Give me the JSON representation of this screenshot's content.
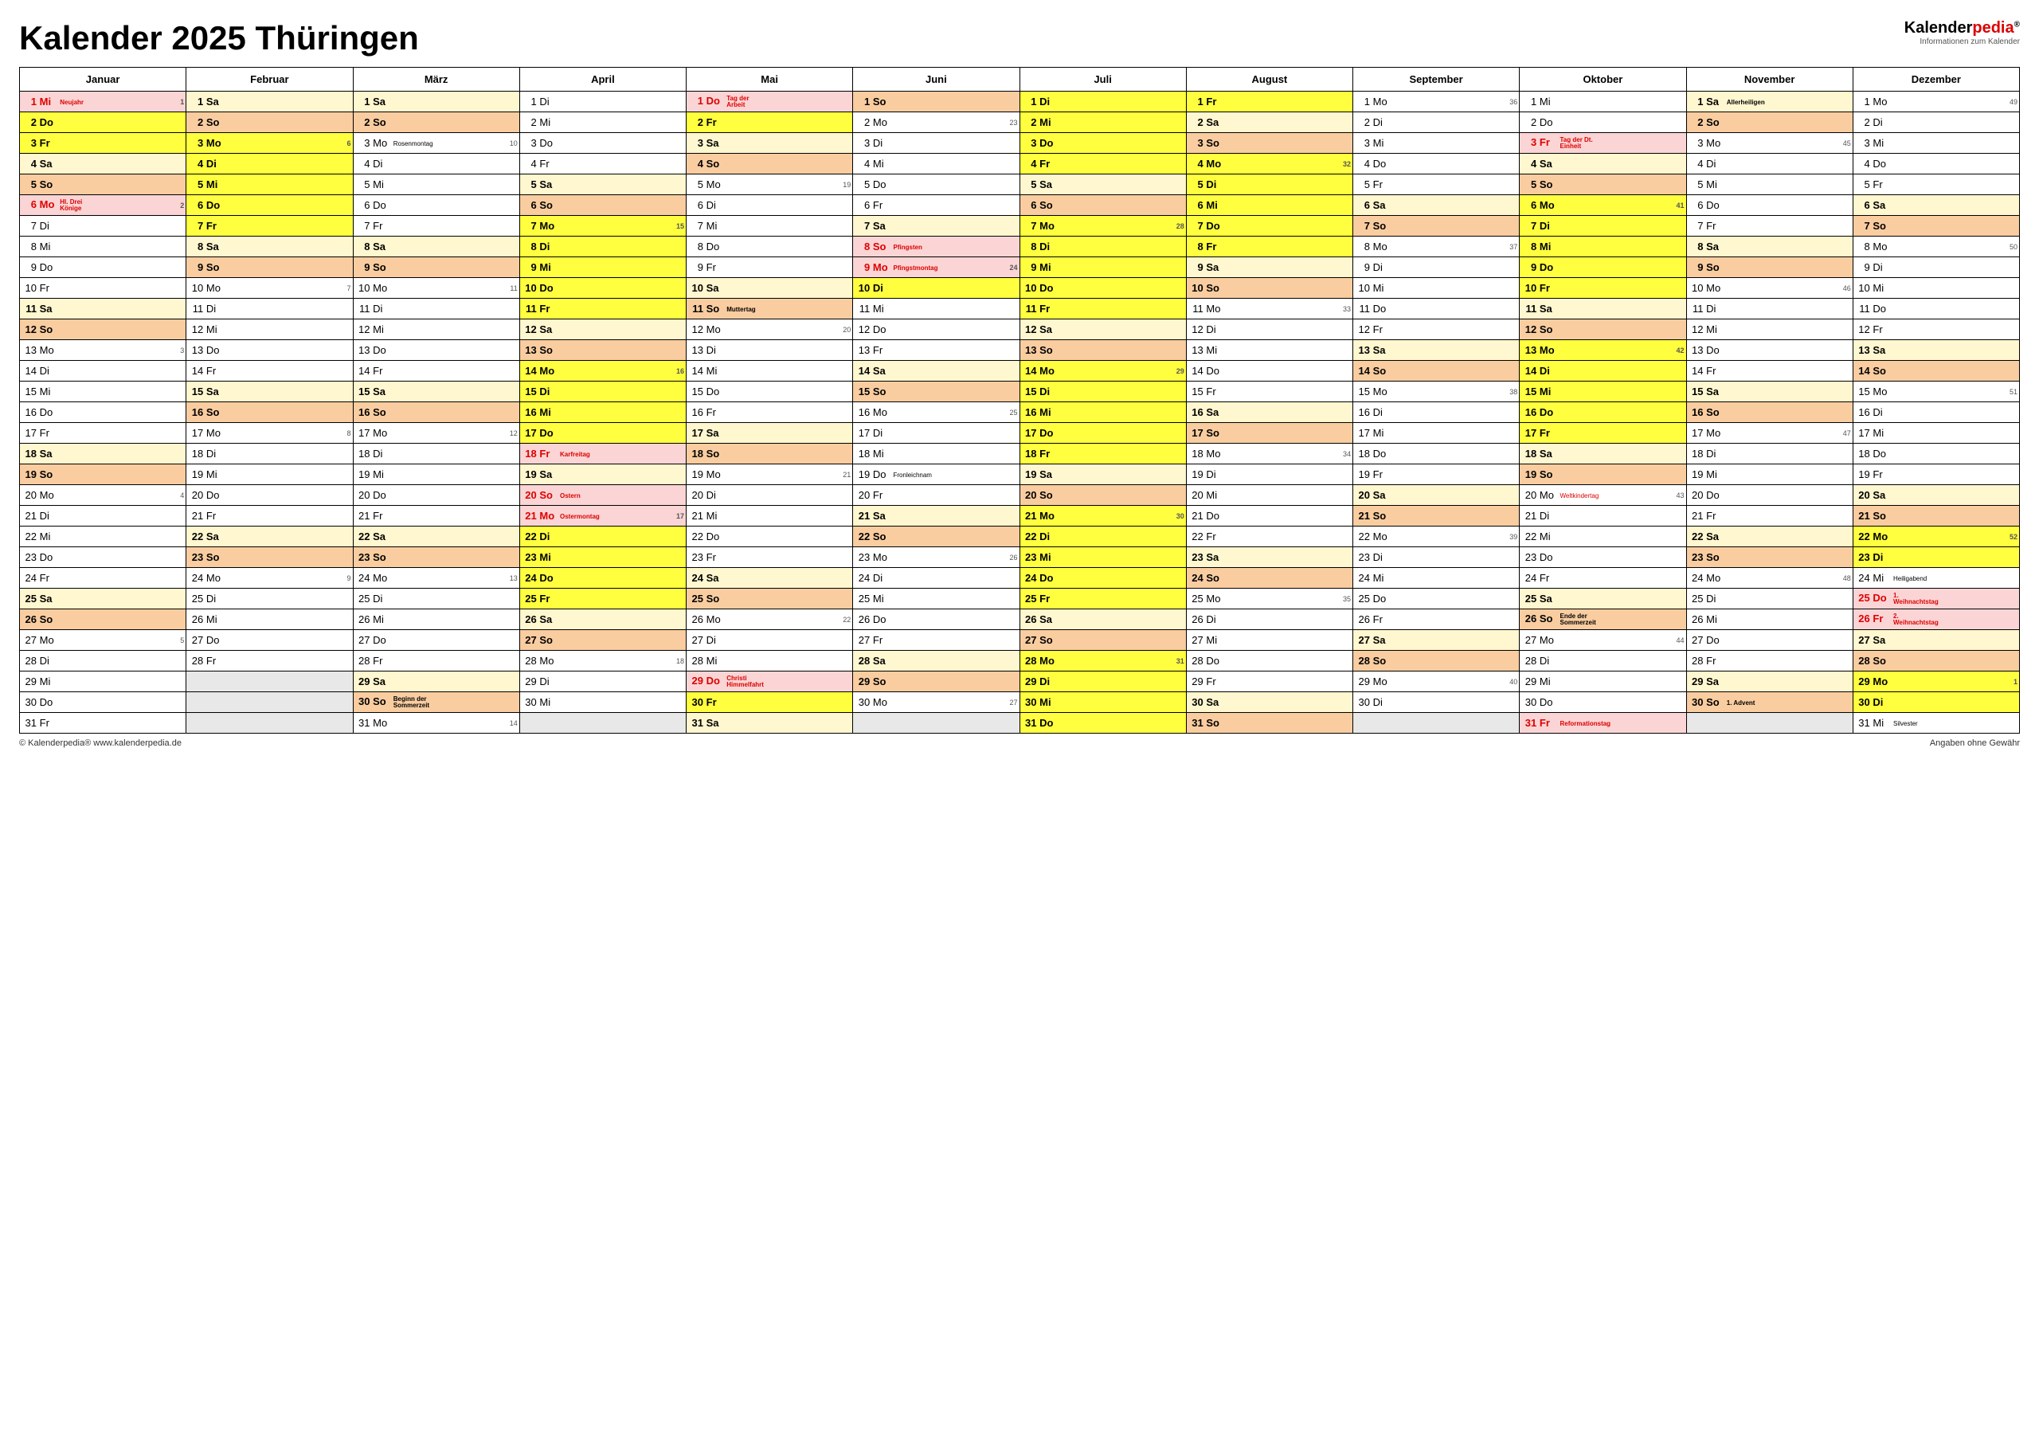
{
  "title": "Kalender 2025 Thüringen",
  "brand": {
    "name1": "Kalender",
    "name2": "pedia",
    "tag": "Informationen zum Kalender"
  },
  "footer": {
    "left": "© Kalenderpedia®   www.kalenderpedia.de",
    "right": "Angaben ohne Gewähr"
  },
  "colors": {
    "yellow": "#ffff3f",
    "cream": "#fff7cf",
    "peach": "#f9cda0",
    "pink": "#fbd5d5",
    "grey": "#e8e8e8"
  },
  "months": [
    "Januar",
    "Februar",
    "März",
    "April",
    "Mai",
    "Juni",
    "Juli",
    "August",
    "September",
    "Oktober",
    "November",
    "Dezember"
  ],
  "dow": [
    "Mo",
    "Di",
    "Mi",
    "Do",
    "Fr",
    "Sa",
    "So"
  ],
  "startDow": [
    2,
    5,
    5,
    1,
    3,
    6,
    1,
    4,
    0,
    2,
    5,
    0
  ],
  "daysIn": [
    31,
    28,
    31,
    30,
    31,
    30,
    31,
    31,
    30,
    31,
    30,
    31
  ],
  "holidays": {
    "0": {
      "1": {
        "n": "Neujahr"
      },
      "6": {
        "n": "Hl. Drei Könige",
        "nr": false
      }
    },
    "3": {
      "18": {
        "n": "Karfreitag"
      },
      "20": {
        "n": "Ostern",
        "nr": false
      },
      "21": {
        "n": "Ostermontag"
      }
    },
    "4": {
      "1": {
        "n": "Tag der Arbeit"
      },
      "29": {
        "n": "Christi Himmelfahrt"
      }
    },
    "5": {
      "8": {
        "n": "Pfingsten",
        "nr": false
      },
      "9": {
        "n": "Pfingstmontag"
      }
    },
    "9": {
      "3": {
        "n": "Tag der Dt. Einheit"
      },
      "31": {
        "n": "Reformationstag"
      }
    },
    "11": {
      "25": {
        "n": "1. Weihnachtstag"
      },
      "26": {
        "n": "2. Weihnachtstag"
      }
    }
  },
  "notes": {
    "2": {
      "3": {
        "t": "Rosenmontag"
      },
      "30": {
        "t": "Beginn der Sommerzeit"
      }
    },
    "4": {
      "11": {
        "t": "Muttertag"
      }
    },
    "5": {
      "19": {
        "t": "Fronleichnam"
      }
    },
    "9": {
      "20": {
        "t": "Weltkindertag",
        "r": true
      },
      "26": {
        "t": "Ende der Sommerzeit"
      }
    },
    "10": {
      "1": {
        "t": "Allerheiligen"
      },
      "30": {
        "t": "1. Advent"
      }
    },
    "11": {
      "24": {
        "t": "Heiligabend"
      },
      "31": {
        "t": "Silvester"
      }
    }
  },
  "vacation": {
    "0": [
      2,
      3
    ],
    "1": [
      3,
      4,
      5,
      6,
      7
    ],
    "3": [
      7,
      8,
      9,
      10,
      11,
      14,
      15,
      16,
      17,
      22,
      23,
      24,
      25
    ],
    "4": [
      2,
      30
    ],
    "5": [
      10
    ],
    "6": [
      1,
      2,
      3,
      4,
      7,
      8,
      9,
      10,
      11,
      14,
      15,
      16,
      17,
      18,
      21,
      22,
      23,
      24,
      25,
      28,
      29,
      30,
      31
    ],
    "7": [
      1,
      4,
      5,
      6,
      7,
      8
    ],
    "9": [
      6,
      7,
      8,
      9,
      10,
      13,
      14,
      15,
      16,
      17
    ],
    "11": [
      22,
      23,
      29,
      30
    ]
  },
  "weeknums": {
    "0": {
      "1": 1,
      "6": 2,
      "13": 3,
      "20": 4,
      "27": 5
    },
    "1": {
      "3": 6,
      "10": 7,
      "17": 8,
      "24": 9
    },
    "2": {
      "3": 10,
      "10": 11,
      "17": 12,
      "24": 13,
      "31": 14
    },
    "3": {
      "7": 15,
      "14": 16,
      "21": 17,
      "28": 18
    },
    "4": {
      "5": 19,
      "12": 20,
      "19": 21,
      "26": 22
    },
    "5": {
      "2": 23,
      "9": 24,
      "16": 25,
      "23": 26,
      "30": 27
    },
    "6": {
      "7": 28,
      "14": 29,
      "21": 30,
      "28": 31
    },
    "7": {
      "4": 32,
      "11": 33,
      "18": 34,
      "25": 35
    },
    "8": {
      "1": 36,
      "8": 37,
      "15": 38,
      "22": 39,
      "29": 40
    },
    "9": {
      "6": 41,
      "13": 42,
      "20": 43,
      "27": 44
    },
    "10": {
      "3": 45,
      "10": 46,
      "17": 47,
      "24": 48
    },
    "11": {
      "1": 49,
      "8": 50,
      "15": 51,
      "22": 52,
      "29": 1
    }
  }
}
